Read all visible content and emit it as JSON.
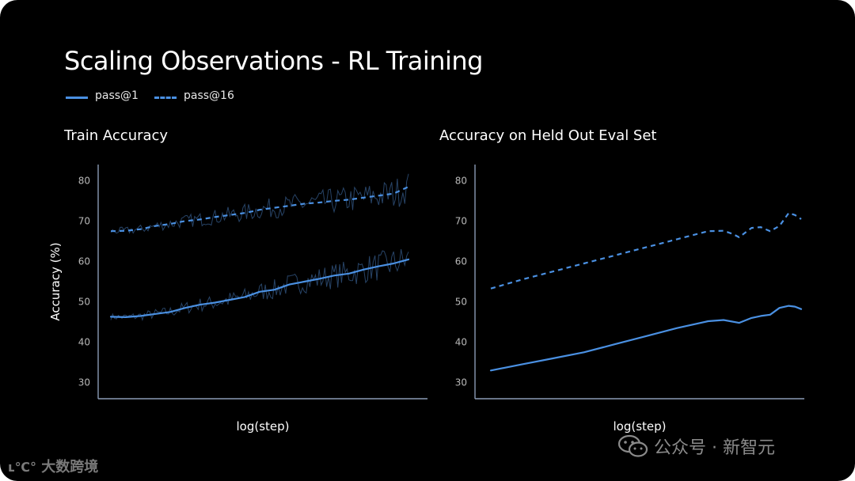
{
  "title": "Scaling Observations - RL Training",
  "legend": [
    {
      "label": "pass@1",
      "style": "solid"
    },
    {
      "label": "pass@16",
      "style": "dashed"
    }
  ],
  "colors": {
    "line": "#4a90e2",
    "noise": "#2e4f78",
    "axis": "#8a9bb5",
    "background": "#000000"
  },
  "watermarks": {
    "bottom_left": "大数跨境",
    "bottom_right": "公众号 · 新智元"
  },
  "chart_data": [
    {
      "type": "line",
      "title": "Train Accuracy",
      "xlabel": "log(step)",
      "ylabel": "Accuracy (%)",
      "x_ticks": [],
      "y_ticks": [
        30,
        40,
        50,
        60,
        70,
        80
      ],
      "ylim": [
        26,
        84
      ],
      "xlim": [
        0,
        1
      ],
      "grid": false,
      "series": [
        {
          "name": "pass@1",
          "style": "solid",
          "x": [
            0,
            0.05,
            0.1,
            0.15,
            0.2,
            0.25,
            0.3,
            0.35,
            0.4,
            0.45,
            0.5,
            0.55,
            0.6,
            0.65,
            0.7,
            0.75,
            0.8,
            0.85,
            0.9,
            0.95,
            1.0
          ],
          "values": [
            46.3,
            46.2,
            46.5,
            47,
            47.5,
            48.5,
            49.3,
            49.8,
            50.5,
            51.2,
            52.5,
            53,
            54.3,
            55,
            55.7,
            56.5,
            57,
            58,
            58.8,
            59.5,
            60.5
          ]
        },
        {
          "name": "pass@16",
          "style": "dashed",
          "x": [
            0,
            0.05,
            0.1,
            0.15,
            0.2,
            0.25,
            0.3,
            0.35,
            0.4,
            0.45,
            0.5,
            0.55,
            0.6,
            0.65,
            0.7,
            0.75,
            0.8,
            0.85,
            0.9,
            0.95,
            1.0
          ],
          "values": [
            67.5,
            67.6,
            68,
            68.8,
            69.3,
            70,
            70.4,
            71,
            71.5,
            72,
            72.8,
            73.3,
            73.8,
            74.3,
            74.6,
            75,
            75.3,
            75.8,
            76.3,
            76.8,
            78.5
          ]
        }
      ]
    },
    {
      "type": "line",
      "title": "Accuracy on Held Out Eval Set",
      "xlabel": "log(step)",
      "ylabel": "",
      "x_ticks": [],
      "y_ticks": [
        30,
        40,
        50,
        60,
        70,
        80
      ],
      "ylim": [
        26,
        84
      ],
      "xlim": [
        0,
        1
      ],
      "grid": false,
      "series": [
        {
          "name": "pass@1",
          "style": "solid",
          "x": [
            0,
            0.1,
            0.2,
            0.3,
            0.4,
            0.5,
            0.6,
            0.7,
            0.75,
            0.8,
            0.84,
            0.87,
            0.9,
            0.93,
            0.96,
            0.98,
            1.0
          ],
          "values": [
            33,
            34.5,
            36,
            37.5,
            39.5,
            41.5,
            43.5,
            45.2,
            45.5,
            44.8,
            46,
            46.5,
            46.8,
            48.5,
            49,
            48.8,
            48.2
          ]
        },
        {
          "name": "pass@16",
          "style": "dashed",
          "x": [
            0,
            0.1,
            0.2,
            0.3,
            0.4,
            0.5,
            0.6,
            0.7,
            0.75,
            0.78,
            0.8,
            0.84,
            0.87,
            0.9,
            0.93,
            0.96,
            0.98,
            1.0
          ],
          "values": [
            53.3,
            55.5,
            57.5,
            59.5,
            61.5,
            63.5,
            65.5,
            67.5,
            67.6,
            66.8,
            66,
            68.3,
            68.5,
            67.5,
            68.8,
            72,
            71.5,
            70.5
          ]
        }
      ]
    }
  ]
}
